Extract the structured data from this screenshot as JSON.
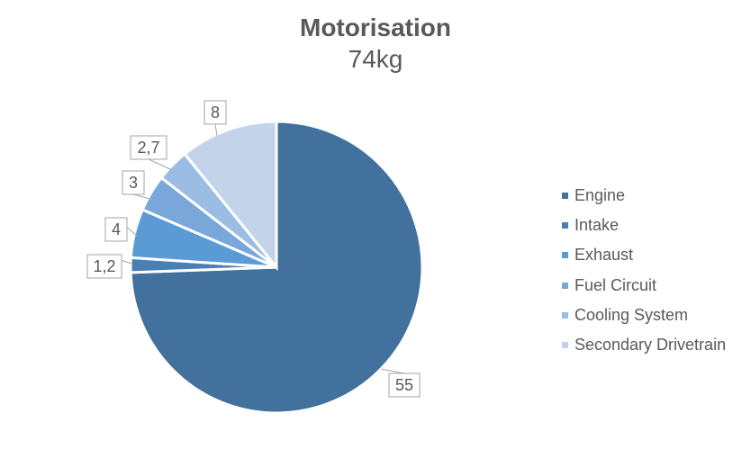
{
  "chart_data": {
    "type": "pie",
    "title": "Motorisation",
    "subtitle": "74kg",
    "categories": [
      "Engine",
      "Intake",
      "Exhaust",
      "Fuel Circuit",
      "Cooling System",
      "Secondary Drivetrain"
    ],
    "values": [
      55,
      1.2,
      4,
      3,
      2.7,
      8
    ],
    "value_labels": [
      "55",
      "1,2",
      "4",
      "3",
      "2,7",
      "8"
    ],
    "colors": [
      "#41719c",
      "#4a7fb5",
      "#5b9bd5",
      "#7aa7da",
      "#9cbde3",
      "#c3d3ea"
    ],
    "legend_position": "right"
  }
}
